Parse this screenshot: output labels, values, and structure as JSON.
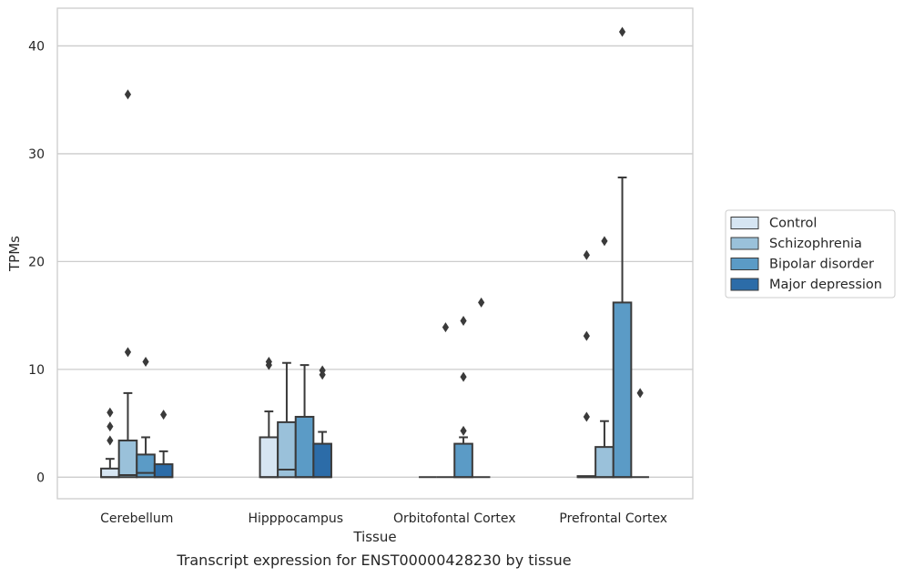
{
  "chart_data": {
    "type": "box",
    "caption": "Transcript expression for ENST00000428230 by tissue",
    "xlabel": "Tissue",
    "ylabel": "TPMs",
    "ylim": [
      -2,
      43.5
    ],
    "yticks": [
      0,
      10,
      20,
      30,
      40
    ],
    "grid": "horizontal",
    "legend_position": "right",
    "categories": [
      "Cerebellum",
      "Hipppocampus",
      "Orbitofontal Cortex",
      "Prefrontal Cortex"
    ],
    "series": [
      {
        "name": "Control",
        "color": "#d6e5f2",
        "boxes": [
          {
            "category": "Cerebellum",
            "min": 0,
            "q1": 0,
            "median": 0,
            "q3": 0.8,
            "max": 1.7,
            "outliers": [
              3.4,
              4.7,
              6.0
            ]
          },
          {
            "category": "Hipppocampus",
            "min": 0,
            "q1": 0,
            "median": 0,
            "q3": 3.7,
            "max": 6.1,
            "outliers": [
              10.4,
              10.7
            ]
          },
          {
            "category": "Orbitofontal Cortex",
            "min": 0,
            "q1": 0,
            "median": 0,
            "q3": 0,
            "max": 0,
            "outliers": []
          },
          {
            "category": "Prefrontal Cortex",
            "min": 0,
            "q1": 0,
            "median": 0,
            "q3": 0.1,
            "max": 0.1,
            "outliers": [
              5.6,
              13.1,
              20.6
            ]
          }
        ]
      },
      {
        "name": "Schizophrenia",
        "color": "#9ac1da",
        "boxes": [
          {
            "category": "Cerebellum",
            "min": 0,
            "q1": 0,
            "median": 0.2,
            "q3": 3.4,
            "max": 7.8,
            "outliers": [
              11.6,
              35.5
            ]
          },
          {
            "category": "Hipppocampus",
            "min": 0,
            "q1": 0,
            "median": 0.7,
            "q3": 5.1,
            "max": 10.6,
            "outliers": []
          },
          {
            "category": "Orbitofontal Cortex",
            "min": 0,
            "q1": 0,
            "median": 0,
            "q3": 0,
            "max": 0,
            "outliers": [
              13.9
            ]
          },
          {
            "category": "Prefrontal Cortex",
            "min": 0,
            "q1": 0,
            "median": 0,
            "q3": 2.8,
            "max": 5.2,
            "outliers": [
              21.9
            ]
          }
        ]
      },
      {
        "name": "Bipolar disorder",
        "color": "#5b9bc6",
        "boxes": [
          {
            "category": "Cerebellum",
            "min": 0,
            "q1": 0,
            "median": 0.4,
            "q3": 2.1,
            "max": 3.7,
            "outliers": [
              10.7
            ]
          },
          {
            "category": "Hipppocampus",
            "min": 0,
            "q1": 0,
            "median": 0,
            "q3": 5.6,
            "max": 10.4,
            "outliers": []
          },
          {
            "category": "Orbitofontal Cortex",
            "min": 0,
            "q1": 0,
            "median": 0,
            "q3": 3.1,
            "max": 3.7,
            "outliers": [
              4.3,
              9.3,
              14.5
            ]
          },
          {
            "category": "Prefrontal Cortex",
            "min": 0,
            "q1": 0,
            "median": 0,
            "q3": 16.2,
            "max": 27.8,
            "outliers": [
              41.3
            ]
          }
        ]
      },
      {
        "name": "Major depression",
        "color": "#2c6ca8",
        "boxes": [
          {
            "category": "Cerebellum",
            "min": 0,
            "q1": 0,
            "median": 0,
            "q3": 1.2,
            "max": 2.4,
            "outliers": [
              5.8
            ]
          },
          {
            "category": "Hipppocampus",
            "min": 0,
            "q1": 0,
            "median": 0,
            "q3": 3.1,
            "max": 4.2,
            "outliers": [
              9.5,
              9.9
            ]
          },
          {
            "category": "Orbitofontal Cortex",
            "min": 0,
            "q1": 0,
            "median": 0,
            "q3": 0,
            "max": 0,
            "outliers": [
              16.2
            ]
          },
          {
            "category": "Prefrontal Cortex",
            "min": 0,
            "q1": 0,
            "median": 0,
            "q3": 0,
            "max": 0,
            "outliers": [
              7.8
            ]
          }
        ]
      }
    ]
  }
}
